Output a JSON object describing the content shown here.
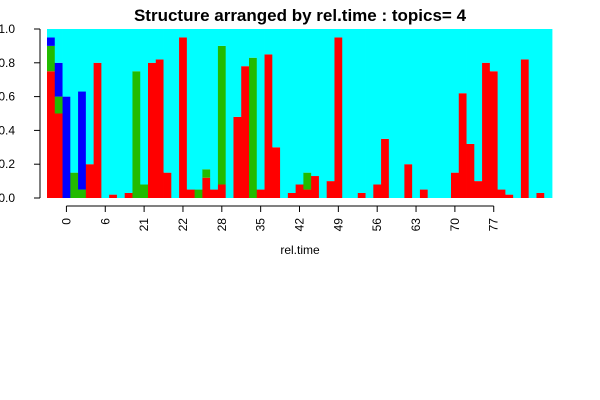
{
  "chart_data": {
    "type": "bar",
    "stacked": true,
    "title": "Structure arranged by rel.time : topics= 4",
    "xlabel": "rel.time",
    "ylabel": "",
    "ylim": [
      0,
      1
    ],
    "yticks": [
      "0.0",
      "0.2",
      "0.4",
      "0.6",
      "0.8",
      "1.0"
    ],
    "x_tick_labels": [
      "0",
      "6",
      "21",
      "22",
      "28",
      "35",
      "42",
      "49",
      "56",
      "63",
      "70",
      "77"
    ],
    "x_tick_positions": [
      2,
      7,
      12,
      17,
      22,
      27,
      32,
      37,
      42,
      47,
      52,
      57
    ],
    "colors": [
      "#ff0000",
      "#22bb00",
      "#0000ff",
      "#00ffff"
    ],
    "stack_order": [
      "red",
      "green",
      "blue",
      "cyan"
    ],
    "series": [
      {
        "values": [
          0.75,
          0.5,
          0.0,
          0.0,
          0.0,
          0.2,
          0.8,
          0.0,
          0.02,
          0.0,
          0.03,
          0.0,
          0.0,
          0.8,
          0.82,
          0.15,
          0.0,
          0.95,
          0.05,
          0.0,
          0.12,
          0.05,
          0.08,
          0.0,
          0.48,
          0.78,
          0.0,
          0.05,
          0.85,
          0.3,
          0.0,
          0.03,
          0.08,
          0.05,
          0.13,
          0.0,
          0.1,
          0.95,
          0.0,
          0.0,
          0.03,
          0.0,
          0.08,
          0.35,
          0.0,
          0.0,
          0.2,
          0.0,
          0.05,
          0.0,
          0.0,
          0.0,
          0.15,
          0.62,
          0.32,
          0.1,
          0.8,
          0.75,
          0.05,
          0.02,
          0.0,
          0.82,
          0.0,
          0.03,
          0.0
        ]
      },
      {
        "values": [
          0.15,
          0.1,
          0.0,
          0.15,
          0.05,
          0.0,
          0.0,
          0.0,
          0.0,
          0.0,
          0.0,
          0.75,
          0.08,
          0.0,
          0.0,
          0.0,
          0.0,
          0.0,
          0.0,
          0.05,
          0.05,
          0.0,
          0.82,
          0.0,
          0.0,
          0.0,
          0.83,
          0.0,
          0.0,
          0.0,
          0.0,
          0.0,
          0.0,
          0.1,
          0.0,
          0.0,
          0.0,
          0.0,
          0.0,
          0.0,
          0.0,
          0.0,
          0.0,
          0.0,
          0.0,
          0.0,
          0.0,
          0.0,
          0.0,
          0.0,
          0.0,
          0.0,
          0.0,
          0.0,
          0.0,
          0.0,
          0.0,
          0.0,
          0.0,
          0.0,
          0.0,
          0.0,
          0.0,
          0.0,
          0.0
        ]
      },
      {
        "values": [
          0.05,
          0.2,
          0.6,
          0.0,
          0.58,
          0.0,
          0.0,
          0.0,
          0.0,
          0.0,
          0.0,
          0.0,
          0.0,
          0.0,
          0.0,
          0.0,
          0.0,
          0.0,
          0.0,
          0.0,
          0.0,
          0.0,
          0.0,
          0.0,
          0.0,
          0.0,
          0.0,
          0.0,
          0.0,
          0.0,
          0.0,
          0.0,
          0.0,
          0.0,
          0.0,
          0.0,
          0.0,
          0.0,
          0.0,
          0.0,
          0.0,
          0.0,
          0.0,
          0.0,
          0.0,
          0.0,
          0.0,
          0.0,
          0.0,
          0.0,
          0.0,
          0.0,
          0.0,
          0.0,
          0.0,
          0.0,
          0.0,
          0.0,
          0.0,
          0.0,
          0.0,
          0.0,
          0.0,
          0.0,
          0.0
        ]
      },
      {
        "values": [
          0.05,
          0.2,
          0.4,
          0.85,
          0.37,
          0.8,
          0.2,
          1.0,
          0.98,
          1.0,
          0.97,
          0.25,
          0.92,
          0.2,
          0.18,
          0.85,
          1.0,
          0.05,
          0.95,
          0.95,
          0.83,
          0.95,
          0.1,
          1.0,
          0.52,
          0.22,
          0.17,
          0.95,
          0.15,
          0.7,
          1.0,
          0.97,
          0.92,
          0.85,
          0.87,
          1.0,
          0.9,
          0.05,
          1.0,
          1.0,
          0.97,
          1.0,
          0.92,
          0.65,
          1.0,
          1.0,
          0.8,
          1.0,
          0.95,
          1.0,
          1.0,
          1.0,
          0.85,
          0.38,
          0.68,
          0.9,
          0.2,
          0.25,
          0.95,
          0.98,
          1.0,
          0.18,
          1.0,
          0.97,
          1.0
        ]
      }
    ]
  }
}
